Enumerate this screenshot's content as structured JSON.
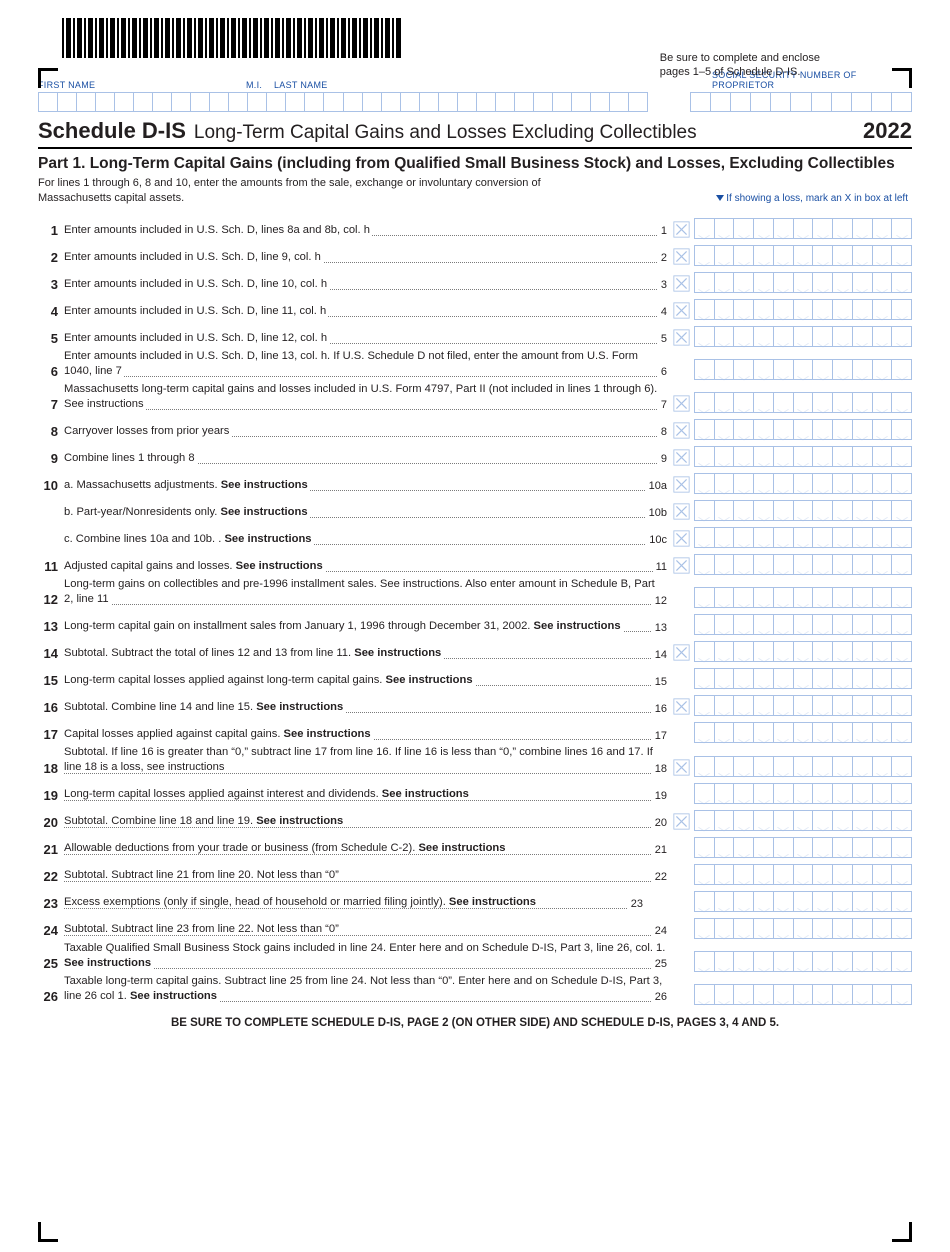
{
  "header": {
    "top_note_l1": "Be sure to complete and enclose",
    "top_note_l2": "pages 1–5 of Schedule D-IS.",
    "labels": {
      "first": "FIRST NAME",
      "mi": "M.I.",
      "last": "LAST NAME",
      "ssn": "SOCIAL SECURITY NUMBER OF PROPRIETOR"
    },
    "schedule": "Schedule D-IS",
    "schedule_desc": "Long-Term Capital Gains and Losses Excluding Collectibles",
    "year": "2022",
    "name_comb_cells": 32,
    "ssn_comb_cells": 11,
    "amount_cells": 11
  },
  "part1": {
    "title": "Part 1. Long-Term Capital Gains (including from Qualified Small Business Stock) and Losses, Excluding Collectibles",
    "sub": "For lines 1 through 6, 8 and 10, enter the amounts from the sale, exchange or involuntary conversion of Massachusetts capital assets.",
    "loss_hint": "If showing a loss, mark an X in box at left"
  },
  "lines": [
    {
      "n": "1",
      "t": "Enter amounts included in U.S. Sch. D, lines 8a and 8b, col. h",
      "rn": "1",
      "x": true
    },
    {
      "n": "2",
      "t": "Enter amounts included in U.S. Sch. D, line 9, col. h",
      "rn": "2",
      "x": true
    },
    {
      "n": "3",
      "t": "Enter amounts included in U.S. Sch. D, line 10, col. h",
      "rn": "3",
      "x": true
    },
    {
      "n": "4",
      "t": "Enter amounts included in U.S. Sch. D, line 11, col. h",
      "rn": "4",
      "x": true
    },
    {
      "n": "5",
      "t": "Enter amounts included in U.S. Sch. D, line 12, col. h",
      "rn": "5",
      "x": true
    },
    {
      "n": "6",
      "t": "Enter amounts included in U.S. Sch. D, line 13, col. h. If U.S. Schedule D not filed, enter the amount from U.S. Form 1040, line 7",
      "rn": "6",
      "x": false
    },
    {
      "n": "7",
      "t": "Massachusetts long-term capital gains and losses included in U.S. Form 4797, Part II (not included in lines 1 through 6). See instructions",
      "rn": "7",
      "x": true
    },
    {
      "n": "8",
      "t": "Carryover losses from prior years",
      "rn": "8",
      "x": true
    },
    {
      "n": "9",
      "t": "Combine lines 1 through 8",
      "rn": "9",
      "x": true
    },
    {
      "n": "10",
      "t": "a. Massachusetts adjustments. <b>See instructions</b>",
      "rn": "10a",
      "x": true
    },
    {
      "n": "",
      "t": "b. Part-year/Nonresidents only. <b>See instructions</b>",
      "rn": "10b",
      "x": true
    },
    {
      "n": "",
      "t": "c. Combine lines 10a and 10b. . <b>See instructions</b>",
      "rn": "10c",
      "x": true
    },
    {
      "n": "11",
      "t": "Adjusted capital gains and losses. <b>See instructions</b>",
      "rn": "11",
      "x": true
    },
    {
      "n": "12",
      "t": "Long-term gains on collectibles and pre-1996 installment sales. See instructions. Also enter amount in Schedule B, Part 2, line 11",
      "rn": "12",
      "x": false
    },
    {
      "n": "13",
      "t": "Long-term capital gain on installment sales from January 1, 1996 through December 31, 2002. <b>See instructions</b>",
      "rn": "13",
      "x": false
    },
    {
      "n": "14",
      "t": "Subtotal. Subtract the total of lines 12 and 13 from line 11. <b>See instructions</b>",
      "rn": "14",
      "x": true
    },
    {
      "n": "15",
      "t": "Long-term capital losses applied against long-term capital gains. <b>See instructions</b>",
      "rn": "15",
      "x": false
    },
    {
      "n": "16",
      "t": "Subtotal. Combine line 14 and line 15. <b>See instructions</b>",
      "rn": "16",
      "x": true
    },
    {
      "n": "17",
      "t": "Capital losses applied against capital gains. <b>See instructions</b>",
      "rn": "17",
      "x": false
    },
    {
      "n": "18",
      "t": "Subtotal. If line 16 is greater than “0,” subtract line 17 from line 16. If line 16 is less than “0,” combine lines 16 and 17. If line 18 is a loss, see instructions",
      "rn": "18",
      "x": true
    },
    {
      "n": "19",
      "t": "Long-term capital losses applied against interest and dividends. <b>See instructions</b>",
      "rn": "19",
      "x": false
    },
    {
      "n": "20",
      "t": "Subtotal. Combine line 18 and line 19. <b>See instructions</b>",
      "rn": "20",
      "x": true
    },
    {
      "n": "21",
      "t": "Allowable deductions from your trade or business (from Schedule C-2). <b>See instructions</b>",
      "rn": "21",
      "x": false
    },
    {
      "n": "22",
      "t": "Subtotal. Subtract line 21 from line 20. Not less than “0”",
      "rn": "22",
      "x": false
    },
    {
      "n": "23",
      "t": "Excess exemptions (only if single, head of household or married filing jointly). <b>See instructions</b>",
      "rn": "23",
      "x": false,
      "shift": true
    },
    {
      "n": "24",
      "t": "Subtotal. Subtract line 23 from line 22. Not less than “0”",
      "rn": "24",
      "x": false
    },
    {
      "n": "25",
      "t": "Taxable Qualified Small Business Stock gains included in line 24. Enter here and on Schedule D-IS, Part 3, line 26, col. 1. <b>See instructions</b>",
      "rn": "25",
      "x": false
    },
    {
      "n": "26",
      "t": "Taxable long-term capital gains. Subtract line 25 from line 24. Not less than “0”. Enter here and on Schedule D-IS, Part 3, line 26 col 1. <b>See instructions</b>",
      "rn": "26",
      "x": false
    }
  ],
  "footer": "BE SURE TO COMPLETE SCHEDULE D-IS, PAGE 2 (ON OTHER SIDE) AND SCHEDULE D-IS, PAGES 3, 4 AND 5.",
  "colors": {
    "blue": "#1a4fa3",
    "cell": "#a9c1e6",
    "text": "#231f20"
  }
}
